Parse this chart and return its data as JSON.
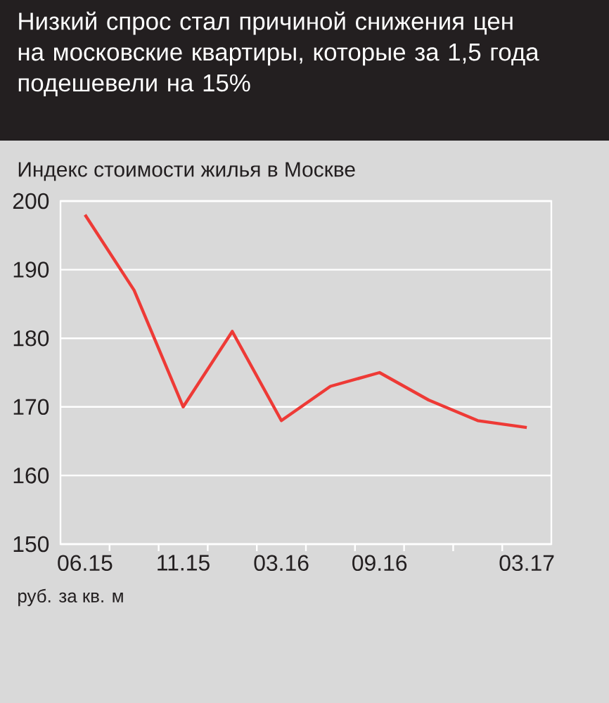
{
  "chart_data": {
    "type": "line",
    "title": "Низкий спрос стал причиной снижения цен на московские квартиры, которые за 1,5 года подешевели на 15%",
    "ylabel": "Индекс стоимости жилья в Москве",
    "xlabel": "руб. за кв. м",
    "categories": [
      "06.15",
      null,
      "11.15",
      null,
      "03.16",
      null,
      "09.16",
      null,
      null,
      "03.17"
    ],
    "series": [
      {
        "color": "#ee3a36",
        "values": [
          198,
          187,
          170,
          181,
          168,
          173,
          175,
          171,
          168,
          167
        ]
      }
    ],
    "ylim": [
      150,
      200
    ],
    "yticks": [
      150,
      160,
      170,
      180,
      190,
      200
    ],
    "grid": "y",
    "marker": "none",
    "line_style": "solid"
  }
}
